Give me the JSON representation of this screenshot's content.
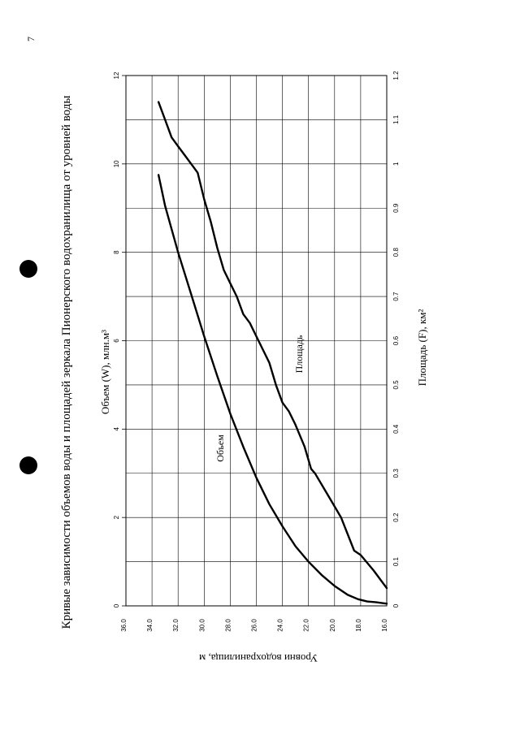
{
  "page": {
    "number": "7"
  },
  "chart_data": {
    "type": "line",
    "title": "Кривые зависимости объемов воды и площадей зеркала Пионерского водохранилища от уровней воды",
    "levels_axis": {
      "label": "Уровни водохранилища, м",
      "range": [
        16.0,
        36.0
      ],
      "ticks": [
        "16.0",
        "18.0",
        "20.0",
        "22.0",
        "24.0",
        "26.0",
        "28.0",
        "30.0",
        "32.0",
        "34.0",
        "36.0"
      ]
    },
    "volume_axis": {
      "label": "Объем (W),  млн.м³",
      "range": [
        0,
        12
      ],
      "ticks": [
        "0",
        "2",
        "4",
        "6",
        "8",
        "10",
        "12"
      ]
    },
    "area_axis": {
      "label": "Площадь (F), км²",
      "range": [
        0,
        1.2
      ],
      "ticks": [
        "0",
        "0.1",
        "0.2",
        "0.3",
        "0.4",
        "0.5",
        "0.6",
        "0.7",
        "0.8",
        "0.9",
        "1",
        "1.1",
        "1.2"
      ]
    },
    "grid": true,
    "series": [
      {
        "name": "Объем",
        "axis": "volume",
        "points": [
          {
            "level": 16.0,
            "value": 0.05
          },
          {
            "level": 16.8,
            "value": 0.08
          },
          {
            "level": 17.5,
            "value": 0.1
          },
          {
            "level": 18.2,
            "value": 0.15
          },
          {
            "level": 19.0,
            "value": 0.25
          },
          {
            "level": 20.0,
            "value": 0.45
          },
          {
            "level": 21.0,
            "value": 0.7
          },
          {
            "level": 22.0,
            "value": 1.0
          },
          {
            "level": 23.0,
            "value": 1.35
          },
          {
            "level": 24.0,
            "value": 1.8
          },
          {
            "level": 25.0,
            "value": 2.3
          },
          {
            "level": 26.0,
            "value": 2.9
          },
          {
            "level": 27.0,
            "value": 3.6
          },
          {
            "level": 28.0,
            "value": 4.35
          },
          {
            "level": 29.0,
            "value": 5.2
          },
          {
            "level": 30.0,
            "value": 6.1
          },
          {
            "level": 31.0,
            "value": 7.05
          },
          {
            "level": 32.0,
            "value": 8.0
          },
          {
            "level": 33.0,
            "value": 9.05
          },
          {
            "level": 33.5,
            "value": 9.75
          }
        ]
      },
      {
        "name": "Площадь",
        "axis": "area",
        "points": [
          {
            "level": 16.0,
            "value": 0.04
          },
          {
            "level": 17.0,
            "value": 0.08
          },
          {
            "level": 18.0,
            "value": 0.115
          },
          {
            "level": 18.5,
            "value": 0.125
          },
          {
            "level": 19.5,
            "value": 0.2
          },
          {
            "level": 20.5,
            "value": 0.25
          },
          {
            "level": 21.5,
            "value": 0.3
          },
          {
            "level": 21.8,
            "value": 0.31
          },
          {
            "level": 22.3,
            "value": 0.36
          },
          {
            "level": 23.0,
            "value": 0.41
          },
          {
            "level": 23.5,
            "value": 0.44
          },
          {
            "level": 24.0,
            "value": 0.46
          },
          {
            "level": 24.5,
            "value": 0.5
          },
          {
            "level": 25.0,
            "value": 0.55
          },
          {
            "level": 25.5,
            "value": 0.58
          },
          {
            "level": 26.0,
            "value": 0.61
          },
          {
            "level": 26.5,
            "value": 0.64
          },
          {
            "level": 27.0,
            "value": 0.66
          },
          {
            "level": 27.5,
            "value": 0.7
          },
          {
            "level": 28.0,
            "value": 0.73
          },
          {
            "level": 28.5,
            "value": 0.76
          },
          {
            "level": 29.0,
            "value": 0.81
          },
          {
            "level": 29.5,
            "value": 0.87
          },
          {
            "level": 30.0,
            "value": 0.92
          },
          {
            "level": 30.5,
            "value": 0.98
          },
          {
            "level": 31.0,
            "value": 1.0
          },
          {
            "level": 31.5,
            "value": 1.02
          },
          {
            "level": 32.0,
            "value": 1.04
          },
          {
            "level": 32.5,
            "value": 1.06
          },
          {
            "level": 33.0,
            "value": 1.1
          },
          {
            "level": 33.5,
            "value": 1.14
          }
        ]
      }
    ]
  }
}
